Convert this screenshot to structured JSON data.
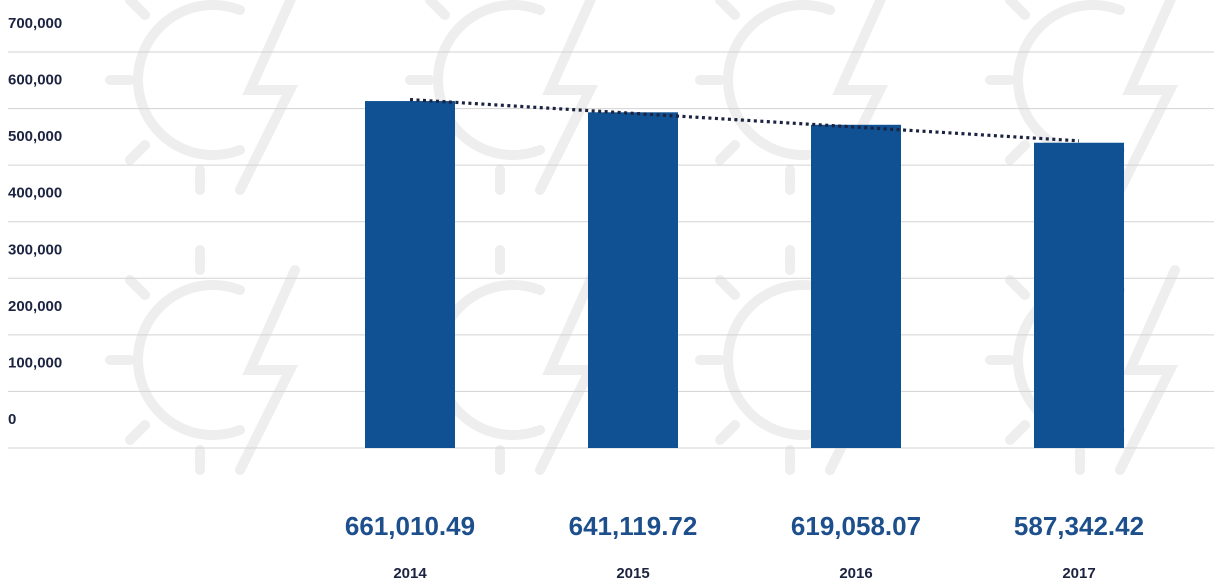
{
  "chart_data": {
    "type": "bar",
    "categories": [
      "2014",
      "2015",
      "2016",
      "2017"
    ],
    "values": [
      661010.49,
      641119.72,
      619058.07,
      587342.42
    ],
    "value_labels": [
      "661,010.49",
      "641,119.72",
      "619,058.07",
      "587,342.42"
    ],
    "y_ticks": [
      "0",
      "100,000",
      "200,000",
      "300,000",
      "400,000",
      "500,000",
      "600,000",
      "700,000"
    ],
    "ylim": [
      0,
      700000
    ],
    "grid": true,
    "trendline": "linear (dotted)",
    "bar_color": "#0f5192",
    "trend_color": "#1c2340"
  }
}
